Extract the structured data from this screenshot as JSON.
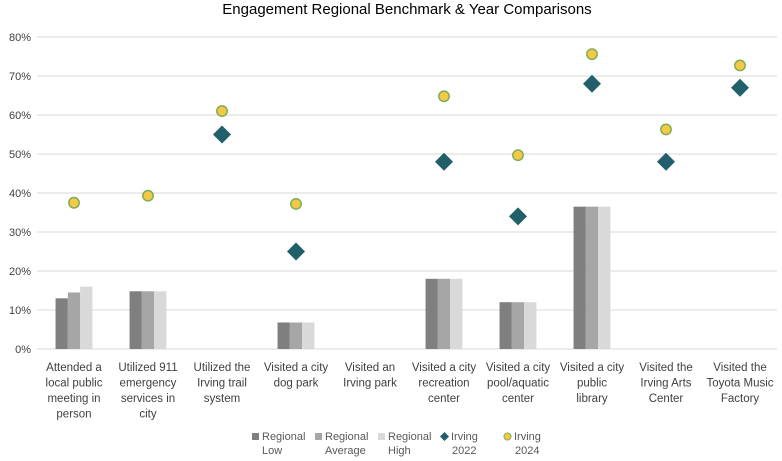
{
  "chart_data": {
    "type": "bar",
    "title": "Engagement Regional Benchmark & Year Comparisons",
    "xlabel": "",
    "ylabel": "",
    "ylim": [
      0,
      0.8
    ],
    "yticks": [
      0,
      0.1,
      0.2,
      0.3,
      0.4,
      0.5,
      0.6,
      0.7,
      0.8
    ],
    "ytick_labels": [
      "0%",
      "10%",
      "20%",
      "30%",
      "40%",
      "50%",
      "60%",
      "70%",
      "80%"
    ],
    "grid": true,
    "legend_position": "bottom",
    "categories": [
      [
        "Attended a",
        "local public",
        "meeting in",
        "person"
      ],
      [
        "Utilized 911",
        "emergency",
        "services in",
        "city"
      ],
      [
        "Utilized the",
        "Irving trail",
        "system"
      ],
      [
        "Visited a city",
        "dog park"
      ],
      [
        "Visited an",
        "Irving park"
      ],
      [
        "Visited a city",
        "recreation",
        "center"
      ],
      [
        "Visited a city",
        "pool/aquatic",
        "center"
      ],
      [
        "Visited a city",
        "public",
        "library"
      ],
      [
        "Visited the",
        "Irving Arts",
        "Center"
      ],
      [
        "Visited the",
        "Toyota Music",
        "Factory"
      ]
    ],
    "series": [
      {
        "name": [
          "Regional",
          "Low"
        ],
        "kind": "bar",
        "color": "#7f7f7f",
        "values": [
          0.13,
          0.148,
          null,
          0.068,
          null,
          0.18,
          0.12,
          0.365,
          null,
          null
        ]
      },
      {
        "name": [
          "Regional",
          "Average"
        ],
        "kind": "bar",
        "color": "#a6a6a6",
        "values": [
          0.145,
          0.148,
          null,
          0.068,
          null,
          0.18,
          0.12,
          0.365,
          null,
          null
        ]
      },
      {
        "name": [
          "Regional",
          "High"
        ],
        "kind": "bar",
        "color": "#d9d9d9",
        "values": [
          0.16,
          0.148,
          null,
          0.068,
          null,
          0.18,
          0.12,
          0.365,
          null,
          null
        ]
      },
      {
        "name": [
          "Irving",
          "2022"
        ],
        "kind": "diamond",
        "color": "#215f6a",
        "values": [
          null,
          null,
          0.55,
          0.25,
          null,
          0.48,
          0.34,
          0.68,
          0.48,
          0.67
        ]
      },
      {
        "name": [
          "Irving",
          "2024"
        ],
        "kind": "circle",
        "color": "#f5c945",
        "stroke": "#7cae55",
        "values": [
          0.375,
          0.393,
          0.61,
          0.372,
          null,
          0.648,
          0.497,
          0.756,
          0.563,
          0.727
        ]
      }
    ]
  }
}
